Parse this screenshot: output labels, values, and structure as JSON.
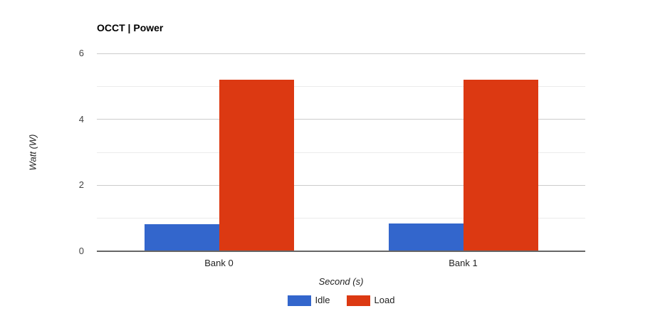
{
  "chart_data": {
    "type": "bar",
    "title": "OCCT | Power",
    "xlabel": "Second (s)",
    "ylabel": "Watt (W)",
    "categories": [
      "Bank 0",
      "Bank 1"
    ],
    "series": [
      {
        "name": "Idle",
        "color": "#3366cc",
        "values": [
          0.83,
          0.85
        ]
      },
      {
        "name": "Load",
        "color": "#dc3912",
        "values": [
          5.2,
          5.2
        ]
      }
    ],
    "ylim": [
      0,
      6
    ],
    "yticks": [
      0,
      2,
      4,
      6
    ],
    "minor_gridlines": [
      1,
      3,
      5
    ],
    "grid": "on",
    "legend_position": "bottom",
    "colors": {
      "major_gridline": "#cccccc",
      "minor_gridline": "#ebebeb",
      "axis_baseline": "#666666",
      "tick_label": "#444444",
      "axis_title": "#222222",
      "category_label": "#222222",
      "chart_title": "#000000",
      "background": "#ffffff"
    }
  }
}
